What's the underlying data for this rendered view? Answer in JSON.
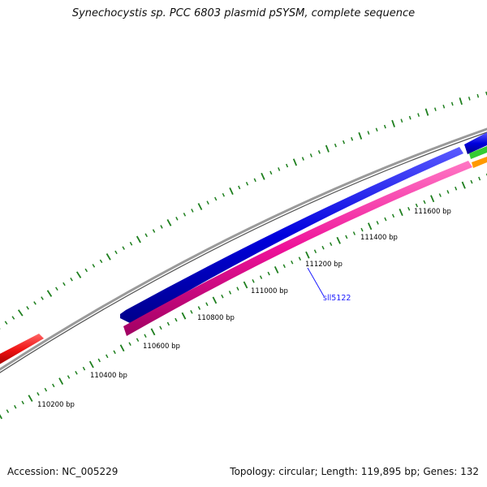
{
  "title": "Synechocystis sp. PCC 6803 plasmid pSYSM, complete sequence",
  "footer": {
    "accession": "Accession: NC_005229",
    "summary": "Topology: circular; Length: 119,895 bp; Genes: 132"
  },
  "tick_labels": [
    "110200 bp",
    "110400 bp",
    "110600 bp",
    "110800 bp",
    "111000 bp",
    "111200 bp",
    "111400 bp",
    "111600 bp"
  ],
  "gene_label": "sll5122",
  "colors": {
    "backbone": "#8a8a8a",
    "tick": "#1e7f1e",
    "forward_gene": "#1010e0",
    "reverse_gene": "#ee1199",
    "red_gene": "#ee1111",
    "green_gene": "#33cc33",
    "orange_gene": "#ff9900",
    "label_link": "#1a1aff"
  }
}
